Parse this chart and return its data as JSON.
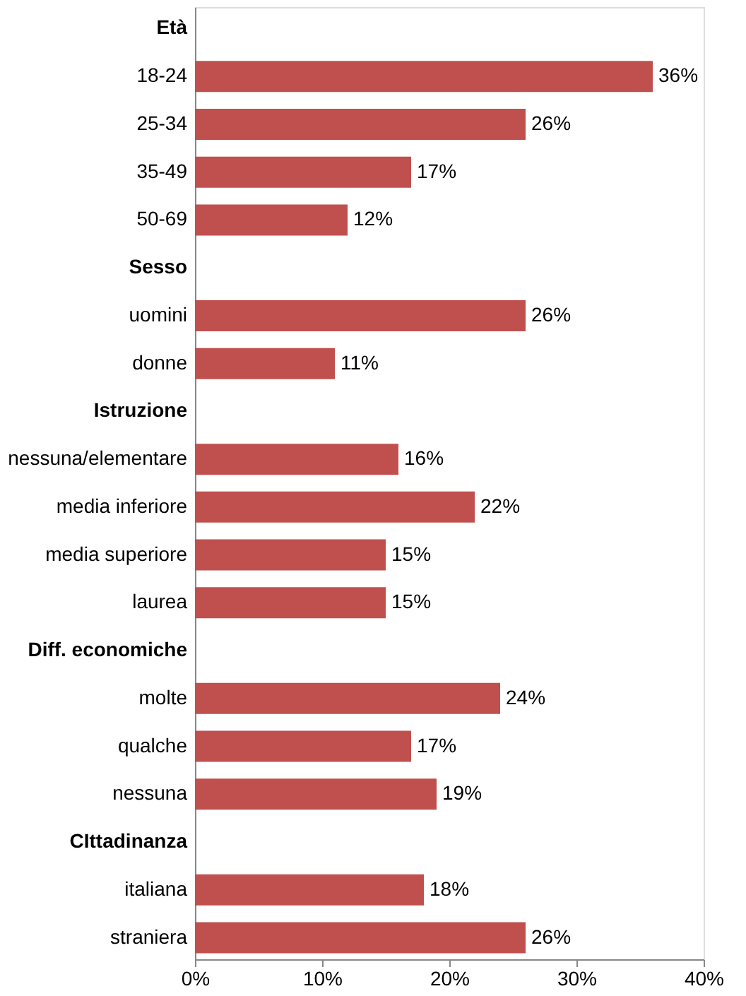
{
  "chart_data": {
    "type": "bar",
    "orientation": "horizontal",
    "categories": [
      "Età",
      "18-24",
      "25-34",
      "35-49",
      "50-69",
      "Sesso",
      "uomini",
      "donne",
      "Istruzione",
      "nessuna/elementare",
      "media inferiore",
      "media superiore",
      "laurea",
      "Diff. economiche",
      "molte",
      "qualche",
      "nessuna",
      "CIttadinanza",
      "italiana",
      "straniera"
    ],
    "values": [
      null,
      36,
      26,
      17,
      12,
      null,
      26,
      11,
      null,
      16,
      22,
      15,
      15,
      null,
      24,
      17,
      19,
      null,
      18,
      26
    ],
    "value_labels": [
      null,
      "36%",
      "26%",
      "17%",
      "12%",
      null,
      "26%",
      "11%",
      null,
      "16%",
      "22%",
      "15%",
      "15%",
      null,
      "24%",
      "17%",
      "19%",
      null,
      "18%",
      "26%"
    ],
    "color": "#c0504d",
    "xlim": [
      0,
      40
    ],
    "xticks": [
      {
        "value": 0,
        "label": "0%"
      },
      {
        "value": 10,
        "label": "10%"
      },
      {
        "value": 20,
        "label": "20%"
      },
      {
        "value": 30,
        "label": "30%"
      },
      {
        "value": 40,
        "label": "40%"
      }
    ],
    "grid": false
  }
}
